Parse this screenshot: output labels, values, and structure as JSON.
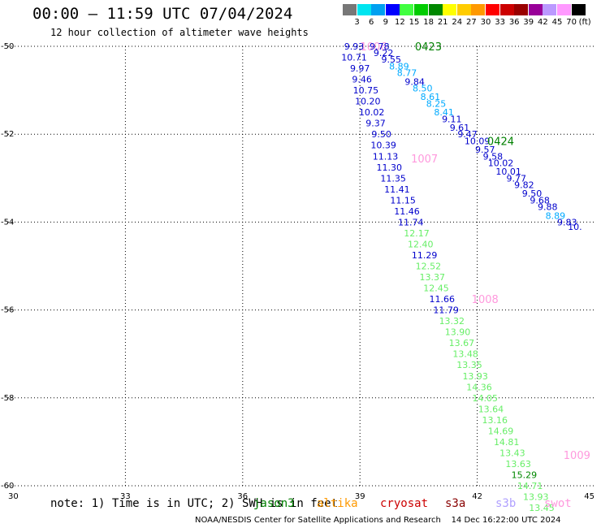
{
  "title": "00:00 – 11:59 UTC 07/04/2024",
  "subtitle": "12 hour collection of altimeter wave heights",
  "legend": {
    "unit": "(ft)",
    "ticks": [
      "3",
      "6",
      "9",
      "12",
      "15",
      "18",
      "21",
      "24",
      "27",
      "30",
      "33",
      "36",
      "39",
      "42",
      "45",
      "70"
    ],
    "colors": [
      "#777777",
      "#00e5f0",
      "#00a0f0",
      "#0000ff",
      "#40ff40",
      "#00cc00",
      "#008800",
      "#ffff00",
      "#ffcc00",
      "#ff9900",
      "#ff0000",
      "#cc0000",
      "#990000",
      "#990099",
      "#bb99ff",
      "#ff99ff",
      "#000000"
    ]
  },
  "footer": {
    "note": "note: 1) Time is in UTC; 2) SWH is in feet",
    "missions": [
      {
        "name": "jason3",
        "color": "#008000"
      },
      {
        "name": "altika",
        "color": "#ff9900"
      },
      {
        "name": "cryosat",
        "color": "#cc0000"
      },
      {
        "name": "s3a",
        "color": "#880000"
      },
      {
        "name": "s3b",
        "color": "#b0a0ff"
      },
      {
        "name": "swot",
        "color": "#ff99dd"
      }
    ],
    "credit": "NOAA/NESDIS Center for Satellite Applications and Research    14 Dec 16:22:00 UTC 2024"
  },
  "chart_data": {
    "type": "scatter",
    "xlim": [
      30,
      45
    ],
    "ylim": [
      -60,
      -50
    ],
    "x_ticks": [
      "30",
      "33",
      "36",
      "39",
      "42",
      "45"
    ],
    "y_ticks": [
      "-50",
      "-52",
      "-54",
      "-56",
      "-58",
      "-60"
    ],
    "grid": true,
    "tracks": [
      {
        "mission": "swot",
        "color": "#ff99dd",
        "time_labels": [
          {
            "text": "1006",
            "lon": 39.35,
            "lat": -50.0
          },
          {
            "text": "1007",
            "lon": 40.65,
            "lat": -52.55
          },
          {
            "text": "1008",
            "lon": 42.2,
            "lat": -55.75
          },
          {
            "text": "1009",
            "lon": 44.55,
            "lat": -59.3
          }
        ],
        "points": [
          {
            "lon": 38.85,
            "lat": -50.0,
            "value": "9.93",
            "color": "#0000cc"
          },
          {
            "lon": 38.85,
            "lat": -50.25,
            "value": "10.71",
            "color": "#0000cc"
          },
          {
            "lon": 39.0,
            "lat": -50.5,
            "value": "9.97",
            "color": "#0000cc"
          },
          {
            "lon": 39.05,
            "lat": -50.75,
            "value": "9.46",
            "color": "#0000cc"
          },
          {
            "lon": 39.15,
            "lat": -51.0,
            "value": "10.75",
            "color": "#0000cc"
          },
          {
            "lon": 39.2,
            "lat": -51.25,
            "value": "10.20",
            "color": "#0000cc"
          },
          {
            "lon": 39.3,
            "lat": -51.5,
            "value": "10.02",
            "color": "#0000cc"
          },
          {
            "lon": 39.4,
            "lat": -51.75,
            "value": "9.37",
            "color": "#0000cc"
          },
          {
            "lon": 39.55,
            "lat": -52.0,
            "value": "9.50",
            "color": "#0000cc"
          },
          {
            "lon": 39.6,
            "lat": -52.25,
            "value": "10.39",
            "color": "#0000cc"
          },
          {
            "lon": 39.65,
            "lat": -52.5,
            "value": "11.13",
            "color": "#0000cc"
          },
          {
            "lon": 39.75,
            "lat": -52.75,
            "value": "11.30",
            "color": "#0000cc"
          },
          {
            "lon": 39.85,
            "lat": -53.0,
            "value": "11.35",
            "color": "#0000cc"
          },
          {
            "lon": 39.95,
            "lat": -53.25,
            "value": "11.41",
            "color": "#0000cc"
          },
          {
            "lon": 40.1,
            "lat": -53.5,
            "value": "11.15",
            "color": "#0000cc"
          },
          {
            "lon": 40.2,
            "lat": -53.75,
            "value": "11.46",
            "color": "#0000cc"
          },
          {
            "lon": 40.3,
            "lat": -54.0,
            "value": "11.74",
            "color": "#0000cc"
          },
          {
            "lon": 40.45,
            "lat": -54.25,
            "value": "12.17",
            "color": "#66ee66"
          },
          {
            "lon": 40.55,
            "lat": -54.5,
            "value": "12.40",
            "color": "#66ee66"
          },
          {
            "lon": 40.65,
            "lat": -54.75,
            "value": "11.29",
            "color": "#0000cc"
          },
          {
            "lon": 40.75,
            "lat": -55.0,
            "value": "12.52",
            "color": "#66ee66"
          },
          {
            "lon": 40.85,
            "lat": -55.25,
            "value": "13.37",
            "color": "#66ee66"
          },
          {
            "lon": 40.95,
            "lat": -55.5,
            "value": "12.45",
            "color": "#66ee66"
          },
          {
            "lon": 41.1,
            "lat": -55.75,
            "value": "11.66",
            "color": "#0000cc"
          },
          {
            "lon": 41.2,
            "lat": -56.0,
            "value": "11.79",
            "color": "#0000cc"
          },
          {
            "lon": 41.35,
            "lat": -56.25,
            "value": "13.32",
            "color": "#66ee66"
          },
          {
            "lon": 41.5,
            "lat": -56.5,
            "value": "13.90",
            "color": "#66ee66"
          },
          {
            "lon": 41.6,
            "lat": -56.75,
            "value": "13.67",
            "color": "#66ee66"
          },
          {
            "lon": 41.7,
            "lat": -57.0,
            "value": "13.48",
            "color": "#66ee66"
          },
          {
            "lon": 41.8,
            "lat": -57.25,
            "value": "13.35",
            "color": "#66ee66"
          },
          {
            "lon": 41.95,
            "lat": -57.5,
            "value": "13.93",
            "color": "#66ee66"
          },
          {
            "lon": 42.05,
            "lat": -57.75,
            "value": "14.36",
            "color": "#66ee66"
          },
          {
            "lon": 42.2,
            "lat": -58.0,
            "value": "14.05",
            "color": "#66ee66"
          },
          {
            "lon": 42.35,
            "lat": -58.25,
            "value": "13.64",
            "color": "#66ee66"
          },
          {
            "lon": 42.45,
            "lat": -58.5,
            "value": "13.16",
            "color": "#66ee66"
          },
          {
            "lon": 42.6,
            "lat": -58.75,
            "value": "14.69",
            "color": "#66ee66"
          },
          {
            "lon": 42.75,
            "lat": -59.0,
            "value": "14.81",
            "color": "#66ee66"
          },
          {
            "lon": 42.9,
            "lat": -59.25,
            "value": "13.43",
            "color": "#66ee66"
          },
          {
            "lon": 43.05,
            "lat": -59.5,
            "value": "13.63",
            "color": "#66ee66"
          },
          {
            "lon": 43.2,
            "lat": -59.75,
            "value": "15.29",
            "color": "#008800"
          },
          {
            "lon": 43.35,
            "lat": -60.0,
            "value": "14.71",
            "color": "#66ee66"
          },
          {
            "lon": 43.5,
            "lat": -60.25,
            "value": "13.93",
            "color": "#66ee66"
          },
          {
            "lon": 43.65,
            "lat": -60.5,
            "value": "13.45",
            "color": "#66ee66"
          }
        ]
      },
      {
        "mission": "jason3",
        "color": "#008000",
        "time_labels": [
          {
            "text": "0423",
            "lon": 40.75,
            "lat": -50.0
          },
          {
            "text": "0424",
            "lon": 42.6,
            "lat": -52.15
          }
        ],
        "points": [
          {
            "lon": 39.5,
            "lat": -50.0,
            "value": "9.78",
            "color": "#0000cc"
          },
          {
            "lon": 39.6,
            "lat": -50.15,
            "value": "9.22",
            "color": "#0000cc"
          },
          {
            "lon": 39.8,
            "lat": -50.3,
            "value": "9.55",
            "color": "#0000cc"
          },
          {
            "lon": 40.0,
            "lat": -50.45,
            "value": "8.89",
            "color": "#00aaff"
          },
          {
            "lon": 40.2,
            "lat": -50.6,
            "value": "8.77",
            "color": "#00aaff"
          },
          {
            "lon": 40.4,
            "lat": -50.8,
            "value": "9.84",
            "color": "#0000cc"
          },
          {
            "lon": 40.6,
            "lat": -50.95,
            "value": "8.50",
            "color": "#00aaff"
          },
          {
            "lon": 40.8,
            "lat": -51.15,
            "value": "8.61",
            "color": "#00aaff"
          },
          {
            "lon": 40.95,
            "lat": -51.3,
            "value": "8.25",
            "color": "#00aaff"
          },
          {
            "lon": 41.15,
            "lat": -51.5,
            "value": "8.41",
            "color": "#00aaff"
          },
          {
            "lon": 41.35,
            "lat": -51.65,
            "value": "9.11",
            "color": "#0000cc"
          },
          {
            "lon": 41.55,
            "lat": -51.85,
            "value": "9.61",
            "color": "#0000cc"
          },
          {
            "lon": 41.75,
            "lat": -52.0,
            "value": "9.47",
            "color": "#0000cc"
          },
          {
            "lon": 42.0,
            "lat": -52.15,
            "value": "10.09",
            "color": "#0000cc"
          },
          {
            "lon": 42.2,
            "lat": -52.35,
            "value": "9.57",
            "color": "#0000cc"
          },
          {
            "lon": 42.4,
            "lat": -52.5,
            "value": "9.58",
            "color": "#0000cc"
          },
          {
            "lon": 42.6,
            "lat": -52.65,
            "value": "10.02",
            "color": "#0000cc"
          },
          {
            "lon": 42.8,
            "lat": -52.85,
            "value": "10.01",
            "color": "#0000cc"
          },
          {
            "lon": 43.0,
            "lat": -53.0,
            "value": "9.77",
            "color": "#0000cc"
          },
          {
            "lon": 43.2,
            "lat": -53.15,
            "value": "9.82",
            "color": "#0000cc"
          },
          {
            "lon": 43.4,
            "lat": -53.35,
            "value": "9.50",
            "color": "#0000cc"
          },
          {
            "lon": 43.6,
            "lat": -53.5,
            "value": "9.68",
            "color": "#0000cc"
          },
          {
            "lon": 43.8,
            "lat": -53.65,
            "value": "9.88",
            "color": "#0000cc"
          },
          {
            "lon": 44.0,
            "lat": -53.85,
            "value": "8.89",
            "color": "#00aaff"
          },
          {
            "lon": 44.3,
            "lat": -54.0,
            "value": "9.83",
            "color": "#0000cc"
          },
          {
            "lon": 44.5,
            "lat": -54.1,
            "value": "10.",
            "color": "#0000cc"
          }
        ]
      }
    ]
  }
}
